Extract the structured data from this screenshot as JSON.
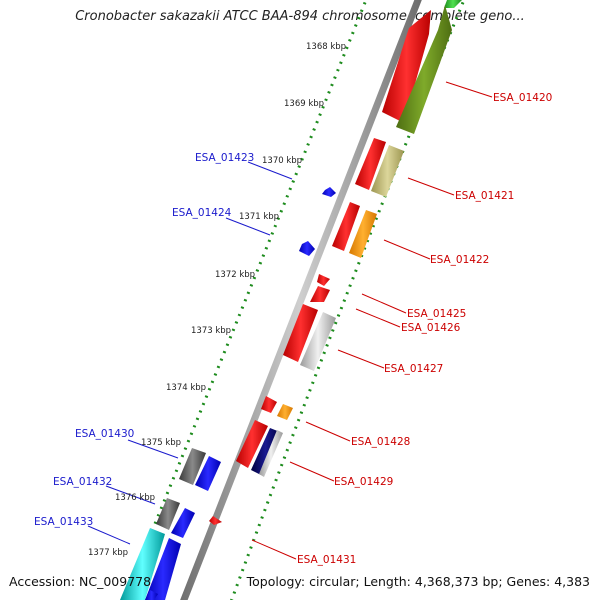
{
  "title": "Cronobacter sakazakii ATCC BAA-894 chromosome, complete geno...",
  "footer": {
    "accession": "Accession: NC_009778",
    "topology": "Topology: circular; Length: 4,368,373 bp; Genes: 4,383"
  },
  "tick_labels": [
    "1368 kbp",
    "1369 kbp",
    "1370 kbp",
    "1371 kbp",
    "1372 kbp",
    "1373 kbp",
    "1374 kbp",
    "1375 kbp",
    "1376 kbp",
    "1377 kbp"
  ],
  "gene_labels": [
    {
      "name": "ESA_01420",
      "color": "#cc0000"
    },
    {
      "name": "ESA_01421",
      "color": "#cc0000"
    },
    {
      "name": "ESA_01422",
      "color": "#cc0000"
    },
    {
      "name": "ESA_01423",
      "color": "#1a1acc"
    },
    {
      "name": "ESA_01424",
      "color": "#1a1acc"
    },
    {
      "name": "ESA_01425",
      "color": "#cc0000"
    },
    {
      "name": "ESA_01426",
      "color": "#cc0000"
    },
    {
      "name": "ESA_01427",
      "color": "#cc0000"
    },
    {
      "name": "ESA_01428",
      "color": "#cc0000"
    },
    {
      "name": "ESA_01429",
      "color": "#cc0000"
    },
    {
      "name": "ESA_01430",
      "color": "#1a1acc"
    },
    {
      "name": "ESA_01431",
      "color": "#cc0000"
    },
    {
      "name": "ESA_01432",
      "color": "#1a1acc"
    },
    {
      "name": "ESA_01433",
      "color": "#1a1acc"
    }
  ],
  "colors": {
    "forward_strand": "#ff1a1a",
    "reverse_strand": "#1a1aff",
    "backbone": "#8a8a8a",
    "ticks": "#1e8c1e"
  }
}
